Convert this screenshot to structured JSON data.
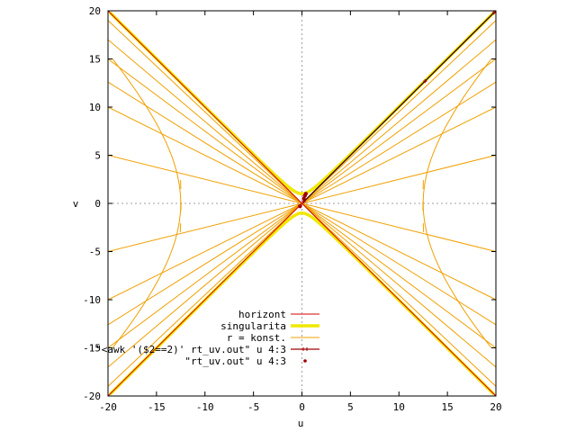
{
  "chart_data": {
    "type": "line",
    "title": "",
    "xlabel": "u",
    "ylabel": "v",
    "xlim": [
      -20,
      20
    ],
    "ylim": [
      -20,
      20
    ],
    "xticks": [
      -20,
      -15,
      -10,
      -5,
      0,
      5,
      10,
      15,
      20
    ],
    "yticks": [
      -20,
      -15,
      -10,
      -5,
      0,
      5,
      10,
      15,
      20
    ],
    "zero_axes": true,
    "grid": false,
    "legend_position": "bottom-center",
    "colors": {
      "horizont": "#d40000",
      "singularita": "#f0e800",
      "r_konst": "#f0a000",
      "awk": "#a00000",
      "rt": "#c08000"
    },
    "series": [
      {
        "name": "horizont",
        "style": "line",
        "lines": [
          [
            [
              -20,
              -20
            ],
            [
              20,
              20
            ]
          ],
          [
            [
              -20,
              20
            ],
            [
              20,
              -20
            ]
          ]
        ]
      },
      {
        "name": "singularita",
        "style": "thick-line",
        "hyperbola_vertex": 1,
        "u_range": [
          -20,
          20
        ]
      },
      {
        "name": "r = konst.",
        "style": "thin-line",
        "rays_through_origin_slopes": [
          1,
          0.95,
          0.85,
          0.75,
          0.63,
          0.5,
          0.25
        ],
        "hyperbola_vertices": [
          12.5
        ],
        "hyperbola_v_range": [
          -15,
          15
        ]
      },
      {
        "name": "\"<awk '($2==2)' rt_uv.out\" u 4:3",
        "style": "linespoints",
        "points": [
          [
            0.2,
            0.2
          ],
          [
            12.7,
            12.7
          ],
          [
            19.8,
            19.8
          ]
        ]
      },
      {
        "name": "\"rt_uv.out\"        u 4:3",
        "style": "points",
        "points": [
          [
            0.2,
            0.5
          ],
          [
            0.3,
            0.8
          ],
          [
            0.4,
            1.0
          ],
          [
            -0.2,
            -0.3
          ]
        ]
      }
    ]
  }
}
